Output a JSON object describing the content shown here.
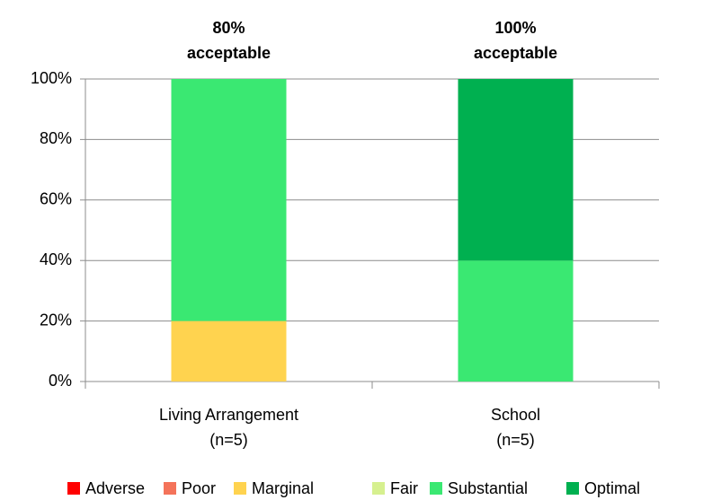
{
  "chart_data": {
    "type": "stacked_bar",
    "categories": [
      "Living Arrangement\n(n=5)",
      "School\n(n=5)"
    ],
    "annotations": [
      "80%\nacceptable",
      "100%\nacceptable"
    ],
    "series": [
      {
        "name": "Adverse",
        "color": "#ff0000",
        "values": [
          0,
          0
        ]
      },
      {
        "name": "Poor",
        "color": "#f4735a",
        "values": [
          0,
          0
        ]
      },
      {
        "name": "Marginal",
        "color": "#ffd34f",
        "values": [
          20,
          0
        ]
      },
      {
        "name": "Fair",
        "color": "#d6f08f",
        "values": [
          0,
          0
        ]
      },
      {
        "name": "Substantial",
        "color": "#3ae872",
        "values": [
          80,
          40
        ]
      },
      {
        "name": "Optimal",
        "color": "#00b050",
        "values": [
          0,
          60
        ]
      }
    ],
    "ylim": [
      0,
      100
    ],
    "yticks": [
      {
        "value": 0,
        "label": "0%"
      },
      {
        "value": 20,
        "label": "20%"
      },
      {
        "value": 40,
        "label": "40%"
      },
      {
        "value": 60,
        "label": "60%"
      },
      {
        "value": 80,
        "label": "80%"
      },
      {
        "value": 100,
        "label": "100%"
      }
    ],
    "grid": true,
    "legend": "bottom"
  }
}
